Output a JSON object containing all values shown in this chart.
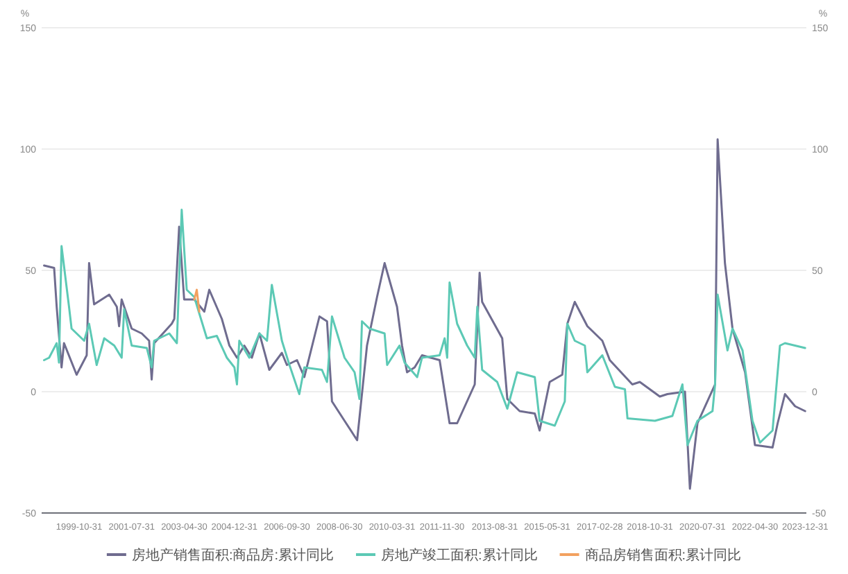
{
  "chart_data": {
    "type": "line",
    "ylabel": "%",
    "y2label": "%",
    "ylim": [
      -50,
      150
    ],
    "yticks": [
      -50,
      0,
      50,
      100,
      150
    ],
    "y2lim": [
      -50,
      150
    ],
    "y2ticks": [
      -50,
      0,
      50,
      100,
      150
    ],
    "xlim": [
      "1998-08-01",
      "2024-01-15"
    ],
    "xticks": [
      "1999-10-31",
      "2001-07-31",
      "2003-04-30",
      "2004-12-31",
      "2006-09-30",
      "2008-06-30",
      "2010-03-31",
      "2011-11-30",
      "2013-08-31",
      "2015-05-31",
      "2017-02-28",
      "2018-10-31",
      "2020-07-31",
      "2022-04-30",
      "2023-12-31"
    ],
    "grid": "y",
    "legend": "bottom",
    "series": [
      {
        "name": "房地产销售面积:商品房:累计同比",
        "color": "#6f6c8f",
        "x": [
          "1998-08",
          "1998-12",
          "1999-01",
          "1999-03",
          "1999-04",
          "1999-09",
          "2000-01",
          "2000-02",
          "2000-04",
          "2000-10",
          "2001-01",
          "2001-02",
          "2001-03",
          "2001-07",
          "2001-11",
          "2002-02",
          "2002-03",
          "2002-04",
          "2002-11",
          "2002-12",
          "2003-02",
          "2003-04",
          "2003-08",
          "2003-12",
          "2004-02",
          "2004-07",
          "2004-10",
          "2005-01",
          "2005-04",
          "2005-07",
          "2005-10",
          "2006-02",
          "2006-07",
          "2006-09",
          "2007-01",
          "2007-04",
          "2007-10",
          "2008-01",
          "2008-03",
          "2008-08",
          "2009-01",
          "2009-05",
          "2009-09",
          "2009-12",
          "2010-05",
          "2010-07",
          "2010-09",
          "2010-12",
          "2011-03",
          "2011-10",
          "2012-02",
          "2012-05",
          "2012-12",
          "2013-02",
          "2013-03",
          "2013-11",
          "2014-01",
          "2014-06",
          "2014-12",
          "2015-02",
          "2015-06",
          "2015-11",
          "2016-01",
          "2016-04",
          "2016-09",
          "2017-03",
          "2017-06",
          "2018-03",
          "2018-06",
          "2019-02",
          "2019-05",
          "2019-12",
          "2020-02",
          "2020-05",
          "2020-12",
          "2021-01",
          "2021-04",
          "2021-07",
          "2021-12",
          "2022-04",
          "2022-11",
          "2023-01",
          "2023-04",
          "2023-08",
          "2023-12"
        ],
        "values": [
          52,
          51,
          35,
          10,
          20,
          7,
          15,
          53,
          36,
          40,
          35,
          27,
          38,
          26,
          24,
          21,
          5,
          20,
          28,
          30,
          68,
          38,
          38,
          33,
          42,
          30,
          19,
          14,
          19,
          14,
          24,
          9,
          16,
          11,
          13,
          6,
          31,
          29,
          -4,
          -12,
          -20,
          19,
          39,
          53,
          35,
          19,
          8,
          10,
          15,
          13,
          -13,
          -13,
          3,
          49,
          37,
          22,
          -3,
          -8,
          -9,
          -16,
          4,
          7,
          28,
          37,
          27,
          21,
          13,
          3,
          4,
          -2,
          -1,
          0,
          -40,
          -13,
          3,
          104,
          53,
          26,
          8,
          -22,
          -23,
          -13,
          -1,
          -6,
          -8
        ]
      },
      {
        "name": "房地产竣工面积:累计同比",
        "color": "#5cc9b5",
        "x": [
          "1998-08",
          "1998-10",
          "1999-01",
          "1999-02",
          "1999-03",
          "1999-06",
          "1999-07",
          "1999-12",
          "2000-02",
          "2000-05",
          "2000-08",
          "2000-12",
          "2001-03",
          "2001-04",
          "2001-07",
          "2002-01",
          "2002-03",
          "2002-04",
          "2002-10",
          "2003-01",
          "2003-03",
          "2003-05",
          "2003-08",
          "2004-01",
          "2004-05",
          "2004-09",
          "2004-12",
          "2005-01",
          "2005-02",
          "2005-06",
          "2005-10",
          "2006-01",
          "2006-03",
          "2006-07",
          "2006-10",
          "2007-02",
          "2007-04",
          "2007-11",
          "2008-01",
          "2008-03",
          "2008-08",
          "2008-12",
          "2009-02",
          "2009-03",
          "2009-06",
          "2009-12",
          "2010-01",
          "2010-06",
          "2010-08",
          "2011-01",
          "2011-03",
          "2011-10",
          "2011-12",
          "2012-01",
          "2012-02",
          "2012-05",
          "2012-09",
          "2012-12",
          "2013-01",
          "2013-03",
          "2013-09",
          "2014-01",
          "2014-05",
          "2014-12",
          "2015-02",
          "2015-08",
          "2015-12",
          "2016-01",
          "2016-04",
          "2016-08",
          "2016-09",
          "2017-03",
          "2017-08",
          "2017-12",
          "2018-01",
          "2018-12",
          "2019-07",
          "2019-11",
          "2020-01",
          "2020-05",
          "2020-11",
          "2020-12",
          "2021-01",
          "2021-05",
          "2021-07",
          "2021-11",
          "2022-03",
          "2022-06",
          "2022-11",
          "2023-02",
          "2023-04",
          "2023-12"
        ],
        "values": [
          13,
          14,
          20,
          12,
          60,
          35,
          26,
          21,
          28,
          11,
          22,
          19,
          14,
          34,
          19,
          18,
          10,
          21,
          24,
          20,
          75,
          42,
          39,
          22,
          23,
          14,
          10,
          3,
          21,
          14,
          24,
          21,
          44,
          21,
          11,
          -1,
          10,
          9,
          4,
          31,
          14,
          8,
          -3,
          29,
          26,
          24,
          11,
          19,
          12,
          6,
          14,
          15,
          22,
          14,
          45,
          28,
          19,
          14,
          35,
          9,
          4,
          -7,
          8,
          6,
          -12,
          -14,
          -4,
          28,
          21,
          19,
          8,
          15,
          2,
          1,
          -11,
          -12,
          -10,
          3,
          -22,
          -12,
          -8,
          3,
          40,
          17,
          26,
          17,
          -12,
          -21,
          -16,
          19,
          20,
          18
        ]
      },
      {
        "name": "商品房销售面积:累计同比",
        "color": "#f2a15f",
        "x": [
          "2003-08",
          "2003-09",
          "2003-10"
        ],
        "values": [
          38,
          42,
          33
        ]
      }
    ]
  }
}
